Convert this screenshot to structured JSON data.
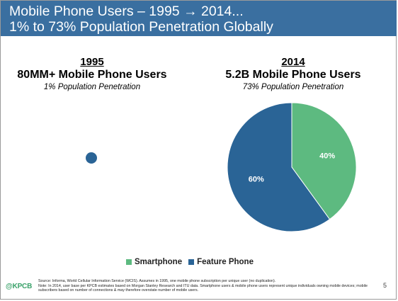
{
  "header": {
    "line1": "Mobile Phone Users – 1995 → 2014...",
    "line2": "1% to 73% Population Penetration Globally"
  },
  "col_1995": {
    "year": "1995",
    "users": "80MM+ Mobile Phone Users",
    "penetration": "1% Population Penetration"
  },
  "col_2014": {
    "year": "2014",
    "users": "5.2B Mobile Phone Users",
    "penetration": "73% Population Penetration"
  },
  "legend": {
    "smartphone": "Smartphone",
    "feature": "Feature Phone"
  },
  "footer": {
    "logo": "KPCB",
    "source": "Source: Informa, World Cellular Information Service (WCIS). Assumes in 1995, one mobile phone subscription per unique user (no duplication).",
    "note": "Note: In 2014, user base per KPCB estimates based on Morgan Stanley Research and ITU data. Smartphone users & mobile phone users represent unique individuals owning mobile devices; mobile subscribers based on number of connections & may therefore overstate number of mobile users.",
    "page": "5"
  },
  "colors": {
    "header_bg": "#3a6fa0",
    "feature_phone": "#2a6496",
    "smartphone": "#5dba80"
  },
  "chart_data": [
    {
      "type": "pie",
      "title": "1995",
      "series": [
        {
          "name": "Feature Phone",
          "values": [
            100
          ]
        }
      ],
      "categories": [
        "Feature Phone"
      ],
      "data_labels": []
    },
    {
      "type": "pie",
      "title": "2014",
      "categories": [
        "Smartphone",
        "Feature Phone"
      ],
      "values": [
        40,
        60
      ],
      "data_labels": [
        "40%",
        "60%"
      ],
      "legend_position": "bottom"
    }
  ]
}
